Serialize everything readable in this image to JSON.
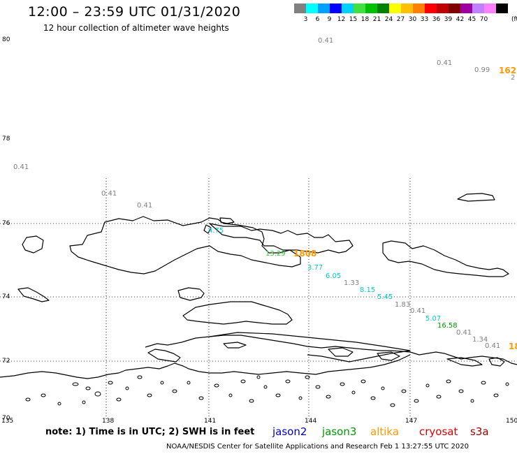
{
  "title": "12:00 – 23:59 UTC 01/31/2020",
  "subtitle": "12 hour collection of altimeter wave heights",
  "legend": {
    "unit": "(ft)",
    "colors": [
      "#808080",
      "#00ffff",
      "#00a0ff",
      "#0000ff",
      "#00d0ff",
      "#40e040",
      "#00c000",
      "#008000",
      "#ffff00",
      "#ffc000",
      "#ff8000",
      "#ff0000",
      "#c00000",
      "#800000",
      "#a000a0",
      "#c080ff",
      "#ff80ff",
      "#000000"
    ],
    "labels": [
      "3",
      "6",
      "9",
      "12",
      "15",
      "18",
      "21",
      "24",
      "27",
      "30",
      "33",
      "36",
      "39",
      "42",
      "45",
      "70"
    ]
  },
  "axes": {
    "lat_labels": [
      "80",
      "78",
      "76",
      "74",
      "72",
      "70"
    ],
    "lon_labels": [
      "135",
      "138",
      "141",
      "144",
      "147",
      "150"
    ]
  },
  "waves": {
    "top_1": "0.41",
    "top_2": "0.41",
    "top_3": "0.99",
    "top_4": "162",
    "top_5": "2",
    "left_1": "0.41",
    "left_2": "0.41",
    "left_3": "0.41",
    "j_1": "4.75",
    "g_1": "13.29",
    "o_1": "1808",
    "c_1": "3.77",
    "c_2": "6.05",
    "k_1": "1.33",
    "c_3": "8.15",
    "c_4": "5.45",
    "k_2": "1.83",
    "k_3": "0.41",
    "c_5": "5.07",
    "g_2": "16.58",
    "k_4": "0.41",
    "k_5": "1.34",
    "k_6": "0.41",
    "o_2": "18"
  },
  "note": "note: 1) Time is in UTC; 2) SWH is in feet",
  "satellites": {
    "jason2": {
      "label": "jason2",
      "color": "#0000cc"
    },
    "jason3": {
      "label": "jason3",
      "color": "#009900"
    },
    "altika": {
      "label": "altika",
      "color": "#ff9900"
    },
    "cryosat": {
      "label": "cryosat",
      "color": "#dd0000"
    },
    "s3a": {
      "label": "s3a",
      "color": "#990000"
    }
  },
  "footer": "NOAA/NESDIS Center for Satellite Applications and Research    Feb  1 13:27:55 UTC 2020"
}
